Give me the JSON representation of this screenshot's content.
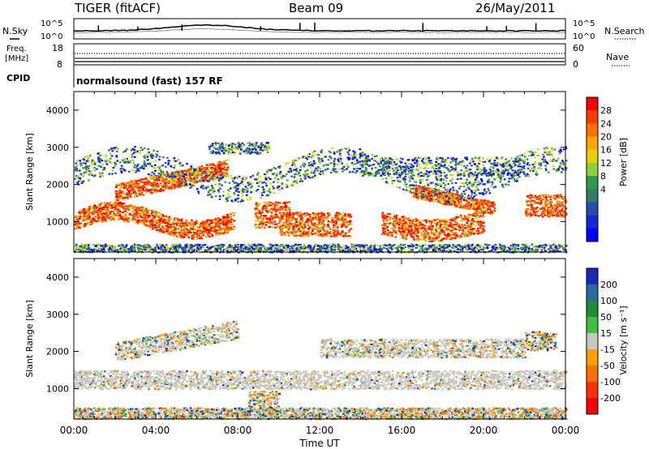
{
  "header": {
    "radar": "TIGER (fitACF)",
    "beam": "Beam 09",
    "date": "26/May/2011"
  },
  "noise": {
    "left_label": "N.Sky",
    "right_label": "N.Search",
    "tick_top": "10^5",
    "tick_bottom": "10^0"
  },
  "freq": {
    "label_line1": "Freq.",
    "label_line2": "[MHz]",
    "left_ticks": [
      "18",
      "8"
    ],
    "right_label": "Nave",
    "right_ticks": [
      "60",
      "0"
    ]
  },
  "cpid": {
    "label": "CPID",
    "text": "normalsound (fast) 157 RF"
  },
  "chart_data": [
    {
      "type": "heatmap",
      "title": "Power",
      "xlabel": "Time UT",
      "ylabel": "Slant Range [km]",
      "x_ticks": [
        "00:00",
        "04:00",
        "08:00",
        "12:00",
        "16:00",
        "20:00",
        "00:00"
      ],
      "y_ticks": [
        1000,
        2000,
        3000,
        4000
      ],
      "ylim": [
        180,
        4500
      ],
      "colorbar": {
        "label": "Power [dB]",
        "ticks": [
          "28",
          "24",
          "20",
          "16",
          "12",
          "8",
          "4"
        ],
        "colors": [
          "#ff0000",
          "#ff3a00",
          "#ff7000",
          "#ffa500",
          "#e6d000",
          "#8ed03a",
          "#2e9a4a",
          "#357a6a",
          "#2a4ab0",
          "#1428d8",
          "#0000ff"
        ]
      }
    },
    {
      "type": "heatmap",
      "title": "Velocity",
      "xlabel": "Time UT",
      "ylabel": "Slant Range [km]",
      "x_ticks": [
        "00:00",
        "04:00",
        "08:00",
        "12:00",
        "16:00",
        "20:00",
        "00:00"
      ],
      "y_ticks": [
        1000,
        2000,
        3000,
        4000
      ],
      "ylim": [
        180,
        4500
      ],
      "colorbar": {
        "label": "Velocity [m s⁻¹]",
        "ticks": [
          "200",
          "100",
          "50",
          "15",
          "-15",
          "-50",
          "-100",
          "-200"
        ],
        "colors": [
          "#1a2ab8",
          "#2a6aa0",
          "#1e8c3c",
          "#3ec23e",
          "#c8c8c0",
          "#ffa000",
          "#ff7000",
          "#ff3000",
          "#ff0000"
        ]
      }
    }
  ],
  "colors": {
    "ground_gray": "#c4c4bc"
  }
}
